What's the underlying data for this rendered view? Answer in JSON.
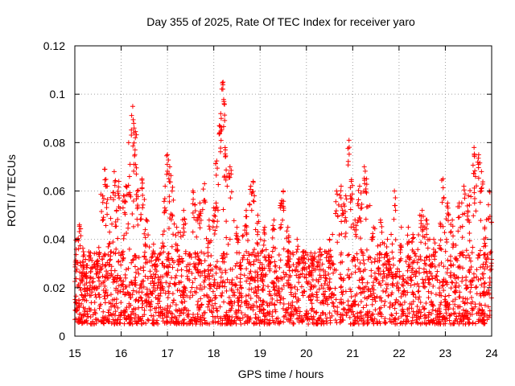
{
  "chart_data": {
    "type": "scatter",
    "title": "Day 355 of 2025, Rate Of TEC Index for receiver yaro",
    "xlabel": "GPS time / hours",
    "ylabel": "ROTI / TECUs",
    "xlim": [
      15,
      24
    ],
    "ylim": [
      0,
      0.12
    ],
    "xticks": [
      15,
      16,
      17,
      18,
      19,
      20,
      21,
      22,
      23,
      24
    ],
    "xtick_labels": [
      "15",
      "16",
      "17",
      "18",
      "19",
      "20",
      "21",
      "22",
      "23",
      "24"
    ],
    "yticks": [
      0,
      0.02,
      0.04,
      0.06,
      0.08,
      0.1,
      0.12
    ],
    "ytick_labels": [
      "0",
      "0.02",
      "0.04",
      "0.06",
      "0.08",
      "0.1",
      "0.12"
    ],
    "grid": true,
    "marker": "plus",
    "marker_color": "#ff0000",
    "series": [
      {
        "name": "ROTI",
        "points": [
          [
            15.05,
            0.04
          ],
          [
            15.1,
            0.046
          ],
          [
            15.18,
            0.033
          ],
          [
            15.25,
            0.025
          ],
          [
            15.35,
            0.028
          ],
          [
            15.5,
            0.031
          ],
          [
            15.6,
            0.058
          ],
          [
            15.65,
            0.069
          ],
          [
            15.7,
            0.062
          ],
          [
            15.75,
            0.043
          ],
          [
            15.85,
            0.068
          ],
          [
            15.9,
            0.052
          ],
          [
            15.95,
            0.064
          ],
          [
            16.05,
            0.058
          ],
          [
            16.1,
            0.062
          ],
          [
            16.18,
            0.066
          ],
          [
            16.25,
            0.095
          ],
          [
            16.28,
            0.086
          ],
          [
            16.3,
            0.077
          ],
          [
            16.35,
            0.06
          ],
          [
            16.45,
            0.065
          ],
          [
            16.55,
            0.048
          ],
          [
            16.7,
            0.038
          ],
          [
            16.9,
            0.042
          ],
          [
            16.95,
            0.062
          ],
          [
            17.0,
            0.075
          ],
          [
            17.05,
            0.07
          ],
          [
            17.1,
            0.06
          ],
          [
            17.2,
            0.045
          ],
          [
            17.35,
            0.052
          ],
          [
            17.55,
            0.06
          ],
          [
            17.7,
            0.055
          ],
          [
            17.8,
            0.063
          ],
          [
            17.9,
            0.048
          ],
          [
            18.0,
            0.053
          ],
          [
            18.05,
            0.055
          ],
          [
            18.12,
            0.087
          ],
          [
            18.15,
            0.092
          ],
          [
            18.2,
            0.105
          ],
          [
            18.22,
            0.097
          ],
          [
            18.25,
            0.077
          ],
          [
            18.35,
            0.07
          ],
          [
            18.5,
            0.045
          ],
          [
            18.7,
            0.052
          ],
          [
            18.8,
            0.062
          ],
          [
            18.85,
            0.064
          ],
          [
            18.95,
            0.05
          ],
          [
            19.1,
            0.045
          ],
          [
            19.3,
            0.048
          ],
          [
            19.45,
            0.055
          ],
          [
            19.5,
            0.06
          ],
          [
            19.6,
            0.045
          ],
          [
            19.8,
            0.04
          ],
          [
            19.95,
            0.035
          ],
          [
            20.1,
            0.033
          ],
          [
            20.3,
            0.036
          ],
          [
            20.5,
            0.04
          ],
          [
            20.65,
            0.06
          ],
          [
            20.75,
            0.062
          ],
          [
            20.85,
            0.058
          ],
          [
            20.92,
            0.081
          ],
          [
            20.97,
            0.064
          ],
          [
            21.05,
            0.048
          ],
          [
            21.15,
            0.062
          ],
          [
            21.25,
            0.07
          ],
          [
            21.3,
            0.065
          ],
          [
            21.45,
            0.045
          ],
          [
            21.6,
            0.048
          ],
          [
            21.75,
            0.04
          ],
          [
            21.9,
            0.06
          ],
          [
            22.05,
            0.045
          ],
          [
            22.2,
            0.045
          ],
          [
            22.3,
            0.042
          ],
          [
            22.45,
            0.05
          ],
          [
            22.5,
            0.052
          ],
          [
            22.6,
            0.048
          ],
          [
            22.75,
            0.04
          ],
          [
            22.9,
            0.046
          ],
          [
            22.95,
            0.065
          ],
          [
            23.05,
            0.055
          ],
          [
            23.15,
            0.048
          ],
          [
            23.3,
            0.055
          ],
          [
            23.4,
            0.062
          ],
          [
            23.5,
            0.058
          ],
          [
            23.62,
            0.078
          ],
          [
            23.65,
            0.066
          ],
          [
            23.72,
            0.075
          ],
          [
            23.78,
            0.068
          ],
          [
            23.85,
            0.045
          ],
          [
            23.95,
            0.06
          ]
        ],
        "background_band": {
          "description": "dense cloud of points spanning the whole x range",
          "value_range": [
            0.005,
            0.035
          ],
          "median": 0.016
        }
      }
    ]
  }
}
